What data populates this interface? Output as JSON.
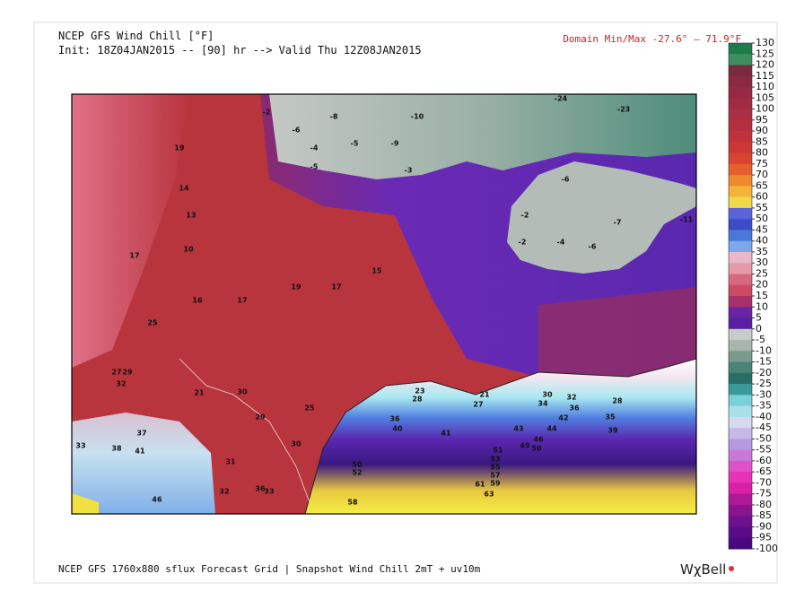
{
  "header": {
    "title": "NCEP GFS Wind Chill [°F]",
    "init": "Init: 18Z04JAN2015 -- [90] hr --> Valid Thu 12Z08JAN2015",
    "domain": "Domain Min/Max -27.6°  –  71.9°F"
  },
  "colorbar": {
    "ticks": [
      130,
      125,
      120,
      115,
      110,
      105,
      100,
      95,
      90,
      85,
      80,
      75,
      70,
      65,
      60,
      55,
      50,
      45,
      40,
      35,
      30,
      25,
      20,
      15,
      10,
      5,
      0,
      -5,
      -10,
      -15,
      -20,
      -25,
      -30,
      -35,
      -40,
      -45,
      -50,
      -55,
      -60,
      -65,
      -70,
      -75,
      -80,
      -85,
      -90,
      -95,
      -100
    ],
    "colors": [
      "#1e7b4b",
      "#3d8f5f",
      "#7a2a3e",
      "#8c2840",
      "#962a42",
      "#a02c44",
      "#aa2e44",
      "#b43040",
      "#c0323a",
      "#cc3634",
      "#d8442e",
      "#e4602c",
      "#ee8a2e",
      "#f4b43a",
      "#f0d848",
      "#5a64d8",
      "#3a4cc8",
      "#4a78d8",
      "#7aa8e8",
      "#e8b8c8",
      "#e49aa8",
      "#d86880",
      "#cc4a62",
      "#a8306a",
      "#6a24a8",
      "#5a1ea0",
      "#c8ccc8",
      "#a8b4ac",
      "#7a9a8c",
      "#4a8478",
      "#2a6e68",
      "#3a9a9a",
      "#7ad0d8",
      "#a8e0e8",
      "#d8d8f0",
      "#c8b8e8",
      "#b898e0",
      "#c878d8",
      "#e050c8",
      "#e830b8",
      "#d820a8",
      "#b01898",
      "#8a1490",
      "#70108c",
      "#5a0c88",
      "#4a0880"
    ]
  },
  "map_labels": [
    "-2",
    "-8",
    "-10",
    "-6",
    "-9",
    "-5",
    "-4",
    "-5",
    "-3",
    "-2",
    "-6",
    "-7",
    "-2",
    "-4",
    "-6",
    "-11",
    "-24",
    "-23",
    "14",
    "19",
    "13",
    "10",
    "17",
    "16",
    "17",
    "19",
    "17",
    "15",
    "25",
    "27",
    "29",
    "32",
    "21",
    "30",
    "29",
    "25",
    "31",
    "30",
    "33",
    "38",
    "41",
    "37",
    "46",
    "32",
    "36",
    "33",
    "58",
    "50",
    "52",
    "23",
    "28",
    "36",
    "40",
    "41",
    "43",
    "49",
    "51",
    "53",
    "55",
    "57",
    "59",
    "61",
    "63",
    "50",
    "46",
    "44",
    "42",
    "34",
    "30",
    "32",
    "36",
    "28",
    "35",
    "39",
    "27",
    "21"
  ],
  "footer": {
    "text": "NCEP GFS 1760x880 sflux Forecast Grid | Snapshot Wind Chill 2mT + uv10m",
    "logo": "WχBell"
  }
}
